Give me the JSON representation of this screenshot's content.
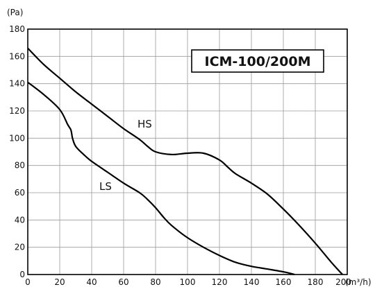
{
  "chart_data": {
    "type": "line",
    "title": "ICM-100/200M",
    "ylabel": "(Pa)",
    "xlabel": "(m³/h)",
    "xlim": [
      0,
      200
    ],
    "ylim": [
      0,
      180
    ],
    "x_ticks": [
      0,
      20,
      40,
      60,
      80,
      100,
      120,
      140,
      160,
      180,
      200
    ],
    "y_ticks": [
      0,
      20,
      40,
      60,
      80,
      100,
      120,
      140,
      160,
      180
    ],
    "grid": true,
    "series": [
      {
        "name": "HS",
        "x": [
          0,
          10,
          20,
          30,
          40,
          50,
          60,
          70,
          75,
          80,
          90,
          100,
          110,
          120,
          125,
          130,
          140,
          150,
          160,
          170,
          180,
          190,
          197
        ],
        "y": [
          166,
          154,
          144,
          134,
          125,
          116,
          107,
          99,
          94,
          90,
          88,
          89,
          89,
          84,
          79,
          74,
          67,
          59,
          48,
          36,
          23,
          9,
          0
        ]
      },
      {
        "name": "LS",
        "x": [
          0,
          10,
          20,
          25,
          27,
          28,
          30,
          35,
          40,
          50,
          60,
          70,
          75,
          80,
          85,
          90,
          100,
          110,
          120,
          130,
          140,
          150,
          160,
          167
        ],
        "y": [
          141,
          132,
          121,
          110,
          106,
          100,
          94,
          88,
          83,
          75,
          67,
          60,
          55,
          49,
          42,
          36,
          27,
          20,
          14,
          9,
          6,
          4,
          2,
          0
        ]
      }
    ]
  }
}
